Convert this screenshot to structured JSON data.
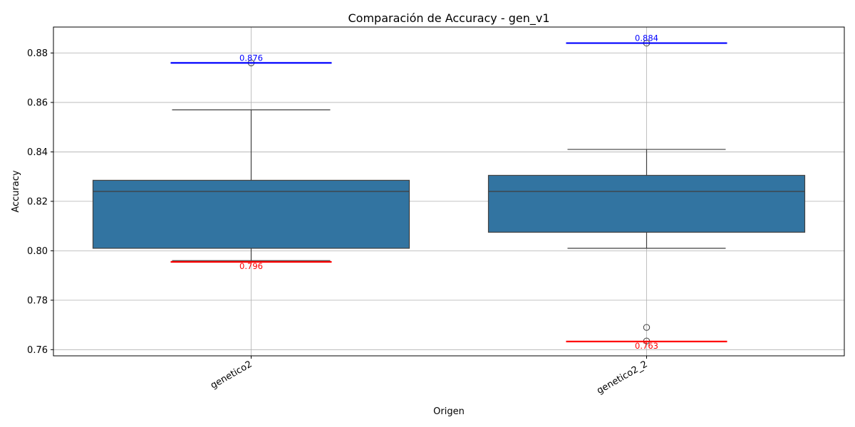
{
  "chart_data": {
    "type": "boxplot",
    "title": "Comparación de Accuracy - gen_v1",
    "xlabel": "Origen",
    "ylabel": "Accuracy",
    "ylim": [
      0.7575,
      0.8905
    ],
    "yticks": [
      0.76,
      0.78,
      0.8,
      0.82,
      0.84,
      0.86,
      0.88
    ],
    "ytick_labels": [
      "0.76",
      "0.78",
      "0.80",
      "0.82",
      "0.84",
      "0.86",
      "0.88"
    ],
    "grid": true,
    "box_color": "#3274a1",
    "categories": [
      "genetico2",
      "genetico2_2"
    ],
    "boxes": [
      {
        "category": "genetico2",
        "q1": 0.801,
        "median": 0.824,
        "q3": 0.8285,
        "whisker_low": 0.796,
        "whisker_high": 0.857,
        "outliers": [
          0.876
        ],
        "max_line": 0.876,
        "max_label": "0.876",
        "min_line": 0.7955,
        "min_label": "0.796"
      },
      {
        "category": "genetico2_2",
        "q1": 0.8075,
        "median": 0.824,
        "q3": 0.8305,
        "whisker_low": 0.801,
        "whisker_high": 0.841,
        "outliers": [
          0.884,
          0.769,
          0.7635
        ],
        "max_line": 0.884,
        "max_label": "0.884",
        "min_line": 0.7633,
        "min_label": "0.763"
      }
    ],
    "max_line_color": "#0000ff",
    "min_line_color": "#ff0000"
  }
}
